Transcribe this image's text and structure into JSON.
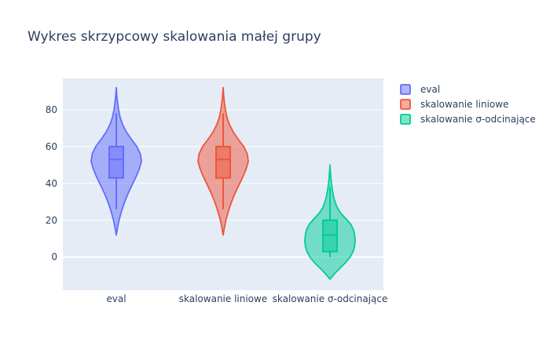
{
  "chart_data": {
    "type": "violin",
    "title": "Wykres skrzypcowy skalowania małej grupy",
    "xlabel": "",
    "ylabel": "",
    "categories": [
      "eval",
      "skalowanie liniowe",
      "skalowanie σ-odcinające"
    ],
    "ylim": [
      -18,
      97
    ],
    "yticks": [
      0,
      20,
      40,
      60,
      80
    ],
    "grid": true,
    "legend_position": "top-right",
    "series": [
      {
        "name": "eval",
        "color": "#636efa",
        "fill": "#a1a8f8",
        "box": {
          "q1": 43,
          "median": 53,
          "q3": 60,
          "whisker_low": 26,
          "whisker_high": 78
        },
        "violin_range": [
          12,
          92
        ],
        "density": [
          [
            12,
            0.0
          ],
          [
            16,
            0.05
          ],
          [
            20,
            0.11
          ],
          [
            24,
            0.19
          ],
          [
            28,
            0.28
          ],
          [
            32,
            0.39
          ],
          [
            36,
            0.52
          ],
          [
            40,
            0.66
          ],
          [
            44,
            0.8
          ],
          [
            48,
            0.92
          ],
          [
            52,
            1.0
          ],
          [
            56,
            0.96
          ],
          [
            60,
            0.82
          ],
          [
            64,
            0.6
          ],
          [
            68,
            0.4
          ],
          [
            72,
            0.25
          ],
          [
            76,
            0.15
          ],
          [
            80,
            0.09
          ],
          [
            84,
            0.05
          ],
          [
            88,
            0.02
          ],
          [
            92,
            0.0
          ]
        ]
      },
      {
        "name": "skalowanie liniowe",
        "color": "#ef553b",
        "fill": "#f3a494",
        "box": {
          "q1": 43,
          "median": 53,
          "q3": 60,
          "whisker_low": 26,
          "whisker_high": 78
        },
        "violin_range": [
          12,
          92
        ],
        "density": [
          [
            12,
            0.0
          ],
          [
            16,
            0.05
          ],
          [
            20,
            0.11
          ],
          [
            24,
            0.19
          ],
          [
            28,
            0.28
          ],
          [
            32,
            0.39
          ],
          [
            36,
            0.52
          ],
          [
            40,
            0.66
          ],
          [
            44,
            0.8
          ],
          [
            48,
            0.92
          ],
          [
            52,
            1.0
          ],
          [
            56,
            0.96
          ],
          [
            60,
            0.82
          ],
          [
            64,
            0.6
          ],
          [
            68,
            0.4
          ],
          [
            72,
            0.25
          ],
          [
            76,
            0.15
          ],
          [
            80,
            0.09
          ],
          [
            84,
            0.05
          ],
          [
            88,
            0.02
          ],
          [
            92,
            0.0
          ]
        ]
      },
      {
        "name": "skalowanie σ-odcinające",
        "color": "#00cc96",
        "fill": "#7fe3c8",
        "box": {
          "q1": 3,
          "median": 12,
          "q3": 20,
          "whisker_low": 0,
          "whisker_high": 38
        },
        "violin_range": [
          -12,
          50
        ],
        "density": [
          [
            -12,
            0.0
          ],
          [
            -9,
            0.18
          ],
          [
            -6,
            0.4
          ],
          [
            -3,
            0.62
          ],
          [
            0,
            0.8
          ],
          [
            3,
            0.92
          ],
          [
            6,
            0.98
          ],
          [
            9,
            1.0
          ],
          [
            12,
            0.98
          ],
          [
            15,
            0.93
          ],
          [
            18,
            0.82
          ],
          [
            21,
            0.62
          ],
          [
            24,
            0.42
          ],
          [
            27,
            0.28
          ],
          [
            30,
            0.2
          ],
          [
            33,
            0.14
          ],
          [
            36,
            0.1
          ],
          [
            39,
            0.07
          ],
          [
            42,
            0.04
          ],
          [
            46,
            0.02
          ],
          [
            50,
            0.0
          ]
        ]
      }
    ]
  }
}
